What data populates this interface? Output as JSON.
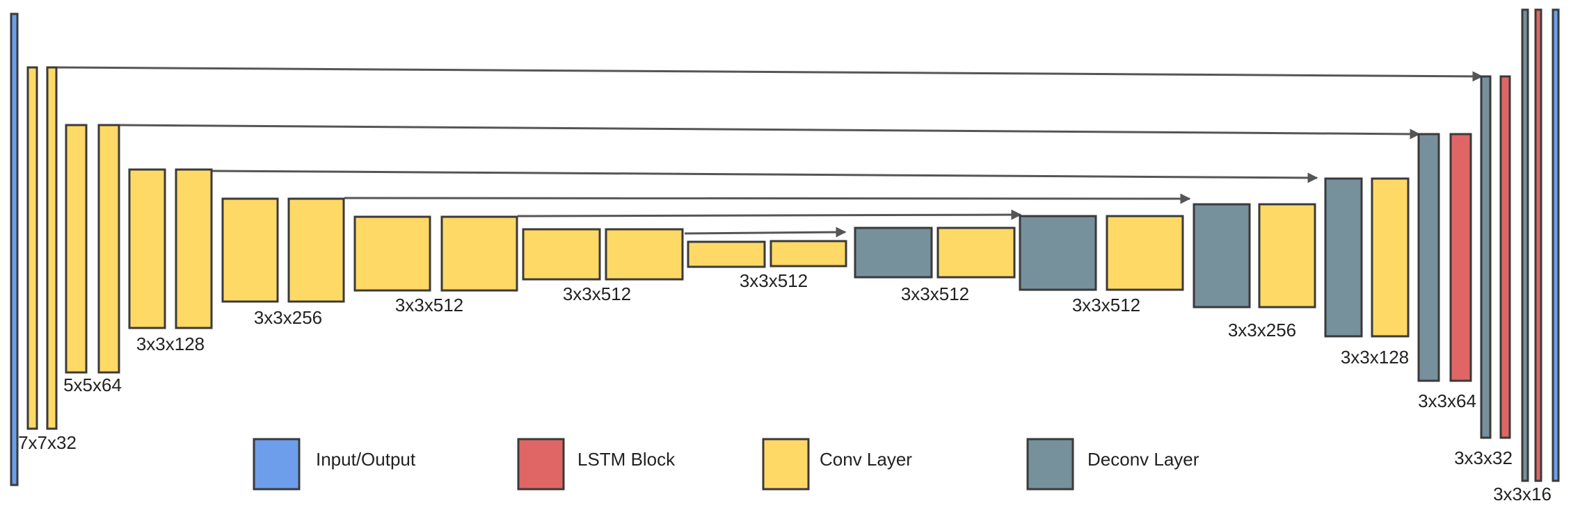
{
  "colors": {
    "io": "#6d9eeb",
    "lstm": "#e06666",
    "conv": "#ffd966",
    "deconv": "#76909c",
    "stroke": "#3a3a3a",
    "arrow": "#555555"
  },
  "labels": {
    "l1": "7x7x32",
    "l2": "5x5x64",
    "l3": "3x3x128",
    "l4": "3x3x256",
    "l5": "3x3x512",
    "l6": "3x3x512",
    "l7": "3x3x512",
    "l8": "3x3x512",
    "l9": "3x3x512",
    "l10": "3x3x256",
    "l11": "3x3x128",
    "l12": "3x3x64",
    "l13": "3x3x32",
    "l14": "3x3x16"
  },
  "legend": {
    "io": "Input/Output",
    "lstm": "LSTM Block",
    "conv": "Conv Layer",
    "deconv": "Deconv Layer"
  }
}
